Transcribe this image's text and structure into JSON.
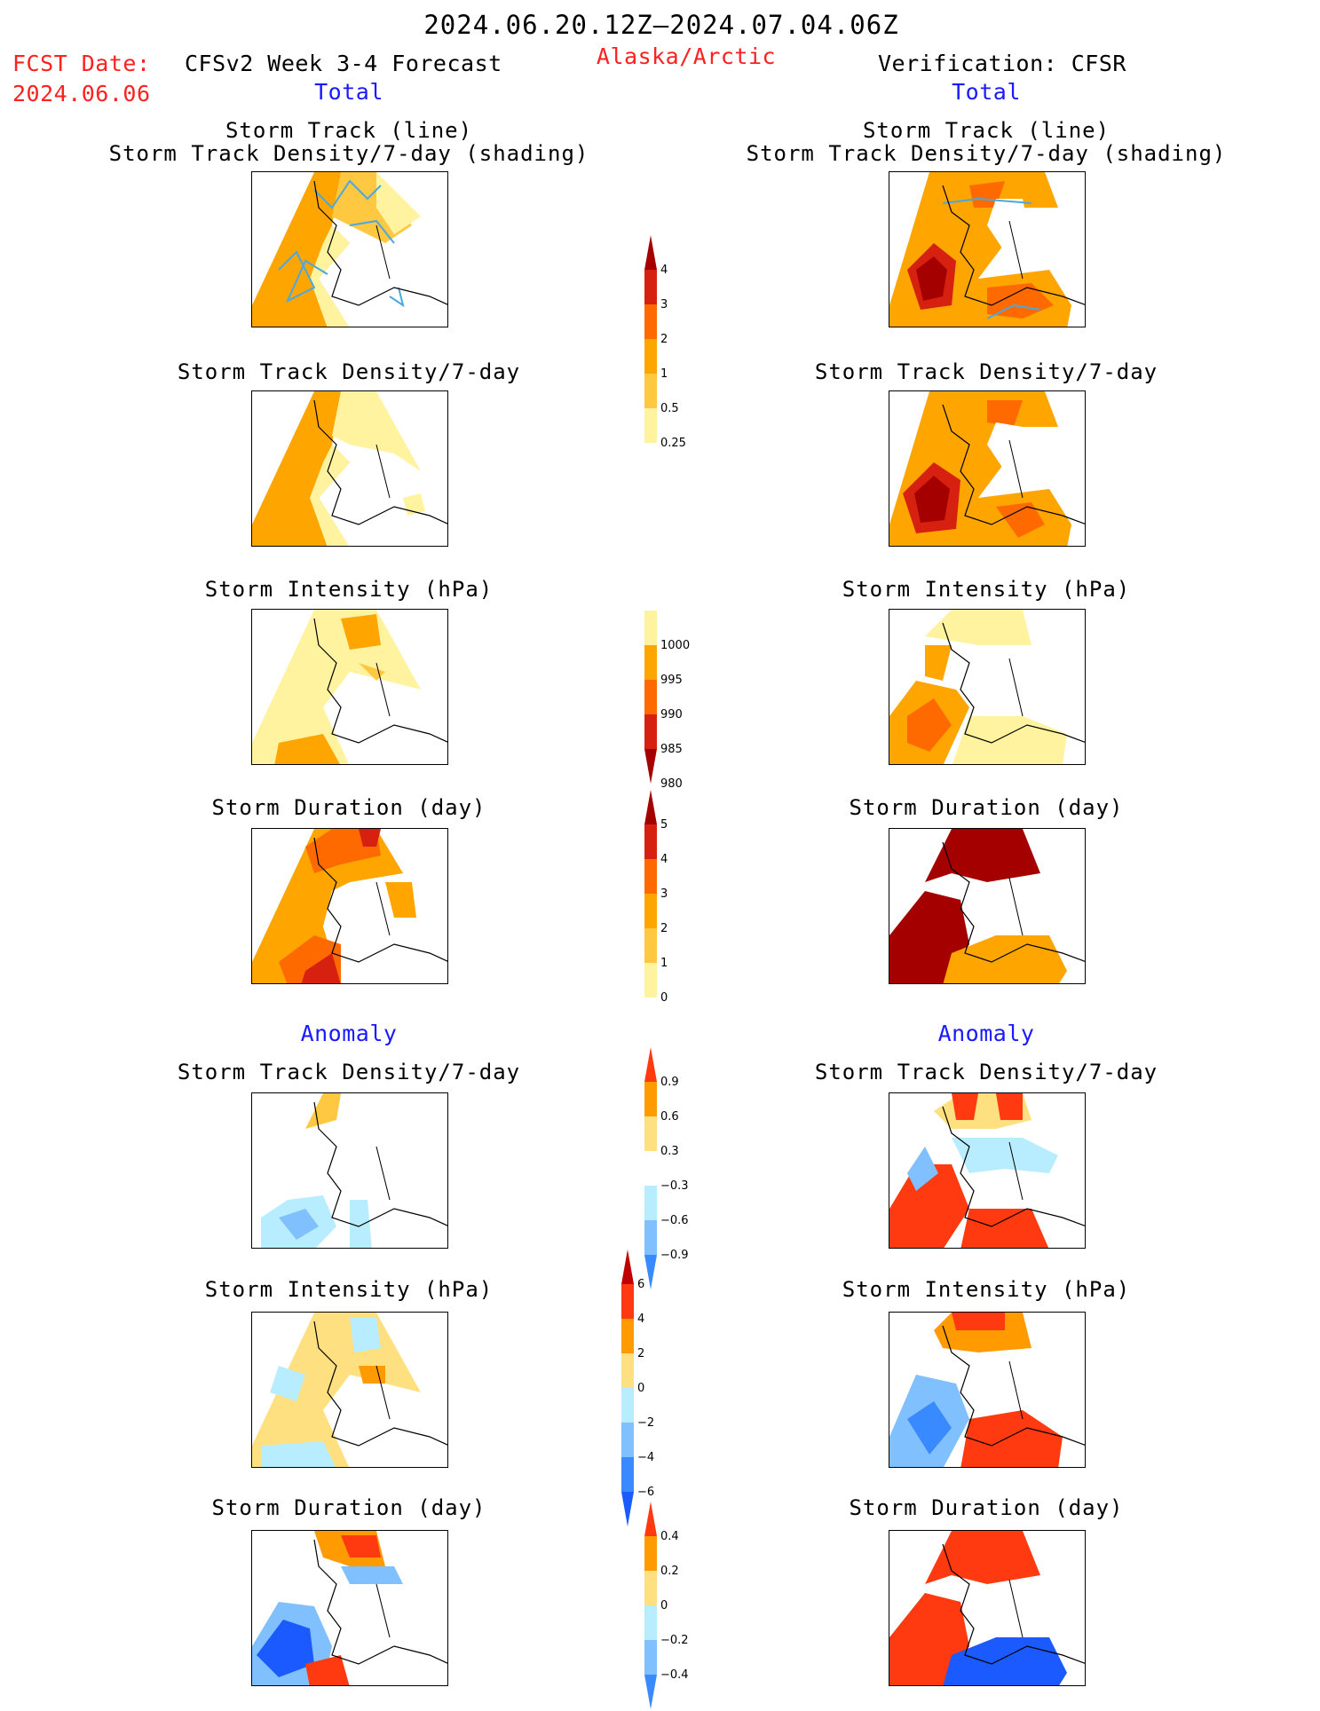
{
  "header": {
    "date_range": "2024.06.20.12Z–2024.07.04.06Z",
    "fcst_label": "FCST Date:",
    "fcst_date": "2024.06.06",
    "model_title": "CFSv2 Week 3-4 Forecast",
    "region": "Alaska/Arctic",
    "verification": "Verification: CFSR"
  },
  "sections": {
    "total": "Total",
    "anomaly": "Anomaly"
  },
  "panel_titles": {
    "track_line": "Storm Track (line)",
    "track_shading": "Storm Track Density/7-day (shading)",
    "density": "Storm Track Density/7-day",
    "intensity": "Storm Intensity (hPa)",
    "duration": "Storm Duration (day)"
  },
  "colorbars": {
    "density_total": {
      "labels": [
        "4",
        "3",
        "2",
        "1",
        "0.5",
        "0.25"
      ],
      "colors": [
        "#a50000",
        "#d62010",
        "#ff6a00",
        "#ffa500",
        "#ffc840",
        "#fff3a0"
      ]
    },
    "intensity_total": {
      "labels": [
        "1000",
        "995",
        "990",
        "985",
        "980"
      ],
      "colors": [
        "#fff3a0",
        "#ffa500",
        "#ff6a00",
        "#d62010",
        "#a50000"
      ]
    },
    "duration_total": {
      "labels": [
        "5",
        "4",
        "3",
        "2",
        "1",
        "0"
      ],
      "colors": [
        "#a50000",
        "#d62010",
        "#ff6a00",
        "#ffa500",
        "#ffc840",
        "#fff3a0"
      ]
    },
    "density_anom": {
      "labels": [
        "0.9",
        "0.6",
        "0.3",
        "−0.3",
        "−0.6",
        "−0.9"
      ],
      "colors": [
        "#ff3a10",
        "#ff9a00",
        "#ffe080",
        "#ffffff",
        "#b8ecff",
        "#80c0ff",
        "#3a8aff"
      ]
    },
    "intensity_anom": {
      "labels": [
        "6",
        "4",
        "2",
        "0",
        "−2",
        "−4",
        "−6"
      ],
      "colors": [
        "#c00000",
        "#ff3a10",
        "#ff9a00",
        "#ffe080",
        "#b8ecff",
        "#80c0ff",
        "#3a8aff",
        "#1a5aff"
      ]
    },
    "duration_anom": {
      "labels": [
        "0.4",
        "0.2",
        "0",
        "−0.2",
        "−0.4"
      ],
      "colors": [
        "#ff3a10",
        "#ff9a00",
        "#ffe080",
        "#b8ecff",
        "#80c0ff",
        "#3a8aff"
      ]
    }
  }
}
